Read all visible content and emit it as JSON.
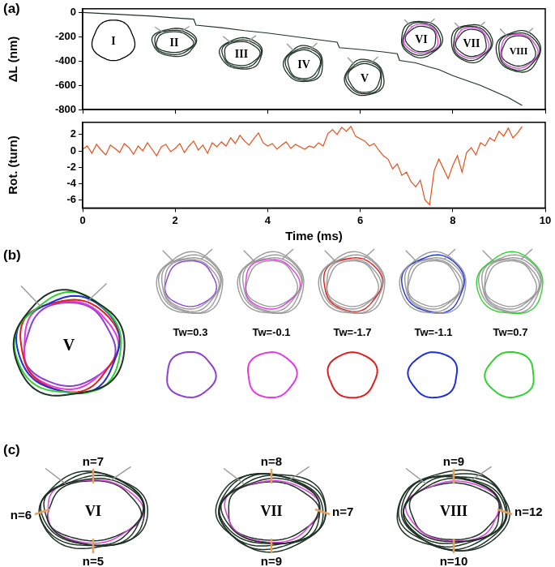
{
  "chart_data": [
    {
      "type": "line",
      "y_label": "ΔL (nm)",
      "x": [
        0,
        0.5,
        1,
        1.5,
        2,
        2.4,
        2.45,
        3,
        3.5,
        4,
        4.5,
        5,
        5.5,
        5.55,
        6,
        6.5,
        6.8,
        6.85,
        7.2,
        7.5,
        7.7,
        8,
        8.3,
        8.6,
        8.9,
        9.2,
        9.5
      ],
      "values": [
        0,
        -10,
        -20,
        -30,
        -45,
        -55,
        -105,
        -125,
        -150,
        -170,
        -195,
        -220,
        -245,
        -290,
        -305,
        -325,
        -340,
        -395,
        -415,
        -450,
        -470,
        -520,
        -560,
        -600,
        -650,
        -700,
        -765
      ],
      "color": "#1e3325",
      "xlim": [
        0,
        10
      ],
      "xticks": [
        0,
        2,
        4,
        6,
        8,
        10
      ],
      "ylim": [
        -800,
        30
      ],
      "yticks": [
        -800,
        -600,
        -400,
        -200,
        0
      ],
      "grid": false,
      "tick_labels": "y"
    },
    {
      "type": "line",
      "x_label": "Time (ms)",
      "y_label": "Rot. (turn)",
      "x": [
        0,
        0.1,
        0.2,
        0.3,
        0.4,
        0.5,
        0.6,
        0.7,
        0.8,
        0.9,
        1,
        1.1,
        1.2,
        1.3,
        1.4,
        1.5,
        1.6,
        1.7,
        1.8,
        1.9,
        2,
        2.1,
        2.2,
        2.3,
        2.4,
        2.5,
        2.6,
        2.7,
        2.8,
        2.9,
        3,
        3.1,
        3.2,
        3.3,
        3.4,
        3.5,
        3.6,
        3.7,
        3.8,
        3.9,
        4,
        4.1,
        4.2,
        4.3,
        4.4,
        4.5,
        4.6,
        4.7,
        4.8,
        4.9,
        5,
        5.1,
        5.2,
        5.3,
        5.4,
        5.5,
        5.6,
        5.7,
        5.8,
        5.9,
        6,
        6.1,
        6.2,
        6.3,
        6.4,
        6.5,
        6.6,
        6.7,
        6.8,
        6.9,
        7,
        7.1,
        7.2,
        7.3,
        7.4,
        7.5,
        7.6,
        7.7,
        7.8,
        7.9,
        8,
        8.1,
        8.2,
        8.3,
        8.4,
        8.5,
        8.6,
        8.7,
        8.8,
        8.9,
        9,
        9.1,
        9.2,
        9.3,
        9.4,
        9.5
      ],
      "values": [
        0.2,
        0.6,
        -0.3,
        0.8,
        0.1,
        -0.5,
        0.7,
        0.3,
        -0.2,
        0.9,
        0.4,
        -0.4,
        0.6,
        0.0,
        1.0,
        0.2,
        -0.6,
        0.5,
        0.8,
        -0.1,
        0.3,
        0.9,
        -0.2,
        0.6,
        1.2,
        0.1,
        0.7,
        -0.3,
        1.0,
        0.5,
        1.1,
        0.6,
        1.6,
        0.9,
        1.9,
        1.2,
        0.7,
        1.5,
        2.2,
        1.0,
        0.6,
        0.9,
        0.2,
        0.7,
        1.1,
        0.3,
        0.8,
        0.5,
        0.2,
        0.6,
        0.4,
        1.0,
        0.6,
        2.1,
        2.6,
        2.0,
        2.9,
        2.4,
        3.0,
        1.8,
        1.5,
        1.2,
        0.6,
        0.9,
        0.1,
        -0.6,
        -1.0,
        -2.2,
        -1.6,
        -3.0,
        -2.6,
        -3.8,
        -4.4,
        -3.6,
        -6.0,
        -6.6,
        -2.4,
        -1.0,
        -2.2,
        -3.4,
        -1.8,
        -0.6,
        -2.6,
        -0.2,
        0.4,
        -0.5,
        1.0,
        0.6,
        1.6,
        1.2,
        2.4,
        1.8,
        2.8,
        1.6,
        2.2,
        3.0
      ],
      "color": "#e8501a",
      "xlim": [
        0,
        10
      ],
      "xticks": [
        0,
        2,
        4,
        6,
        8,
        10
      ],
      "ylim": [
        -7,
        3.5
      ],
      "yticks": [
        -6,
        -4,
        -2,
        0,
        2
      ],
      "grid": false
    }
  ],
  "panel_labels": [
    "(a)",
    "(b)",
    "(c)"
  ],
  "panel_a_insets": [
    {
      "label": "I"
    },
    {
      "label": "II"
    },
    {
      "label": "III"
    },
    {
      "label": "IV"
    },
    {
      "label": "V"
    },
    {
      "label": "VI",
      "color": "#e040e0"
    },
    {
      "label": "VII",
      "color": "#e040e0"
    },
    {
      "label": "VIII",
      "color": "#e040e0"
    }
  ],
  "panel_b": {
    "label": "V",
    "loops": [
      {
        "label": "Tw=0.3",
        "color": "#8b3fd6"
      },
      {
        "label": "Tw=-0.1",
        "color": "#e23ae2"
      },
      {
        "label": "Tw=-1.7",
        "color": "#e01e1e"
      },
      {
        "label": "Tw=-1.1",
        "color": "#1e2ee0"
      },
      {
        "label": "Tw=0.7",
        "color": "#2ed42e"
      }
    ]
  },
  "panel_c": [
    {
      "label": "VI",
      "top": "n=7",
      "left": "n=6",
      "bottom": "n=5",
      "color": "#e040e0"
    },
    {
      "label": "VII",
      "top": "n=8",
      "right": "n=7",
      "bottom": "n=9",
      "color": "#e040e0"
    },
    {
      "label": "VIII",
      "top": "n=9",
      "right": "n=12",
      "bottom": "n=10",
      "color": "#e040e0"
    }
  ]
}
